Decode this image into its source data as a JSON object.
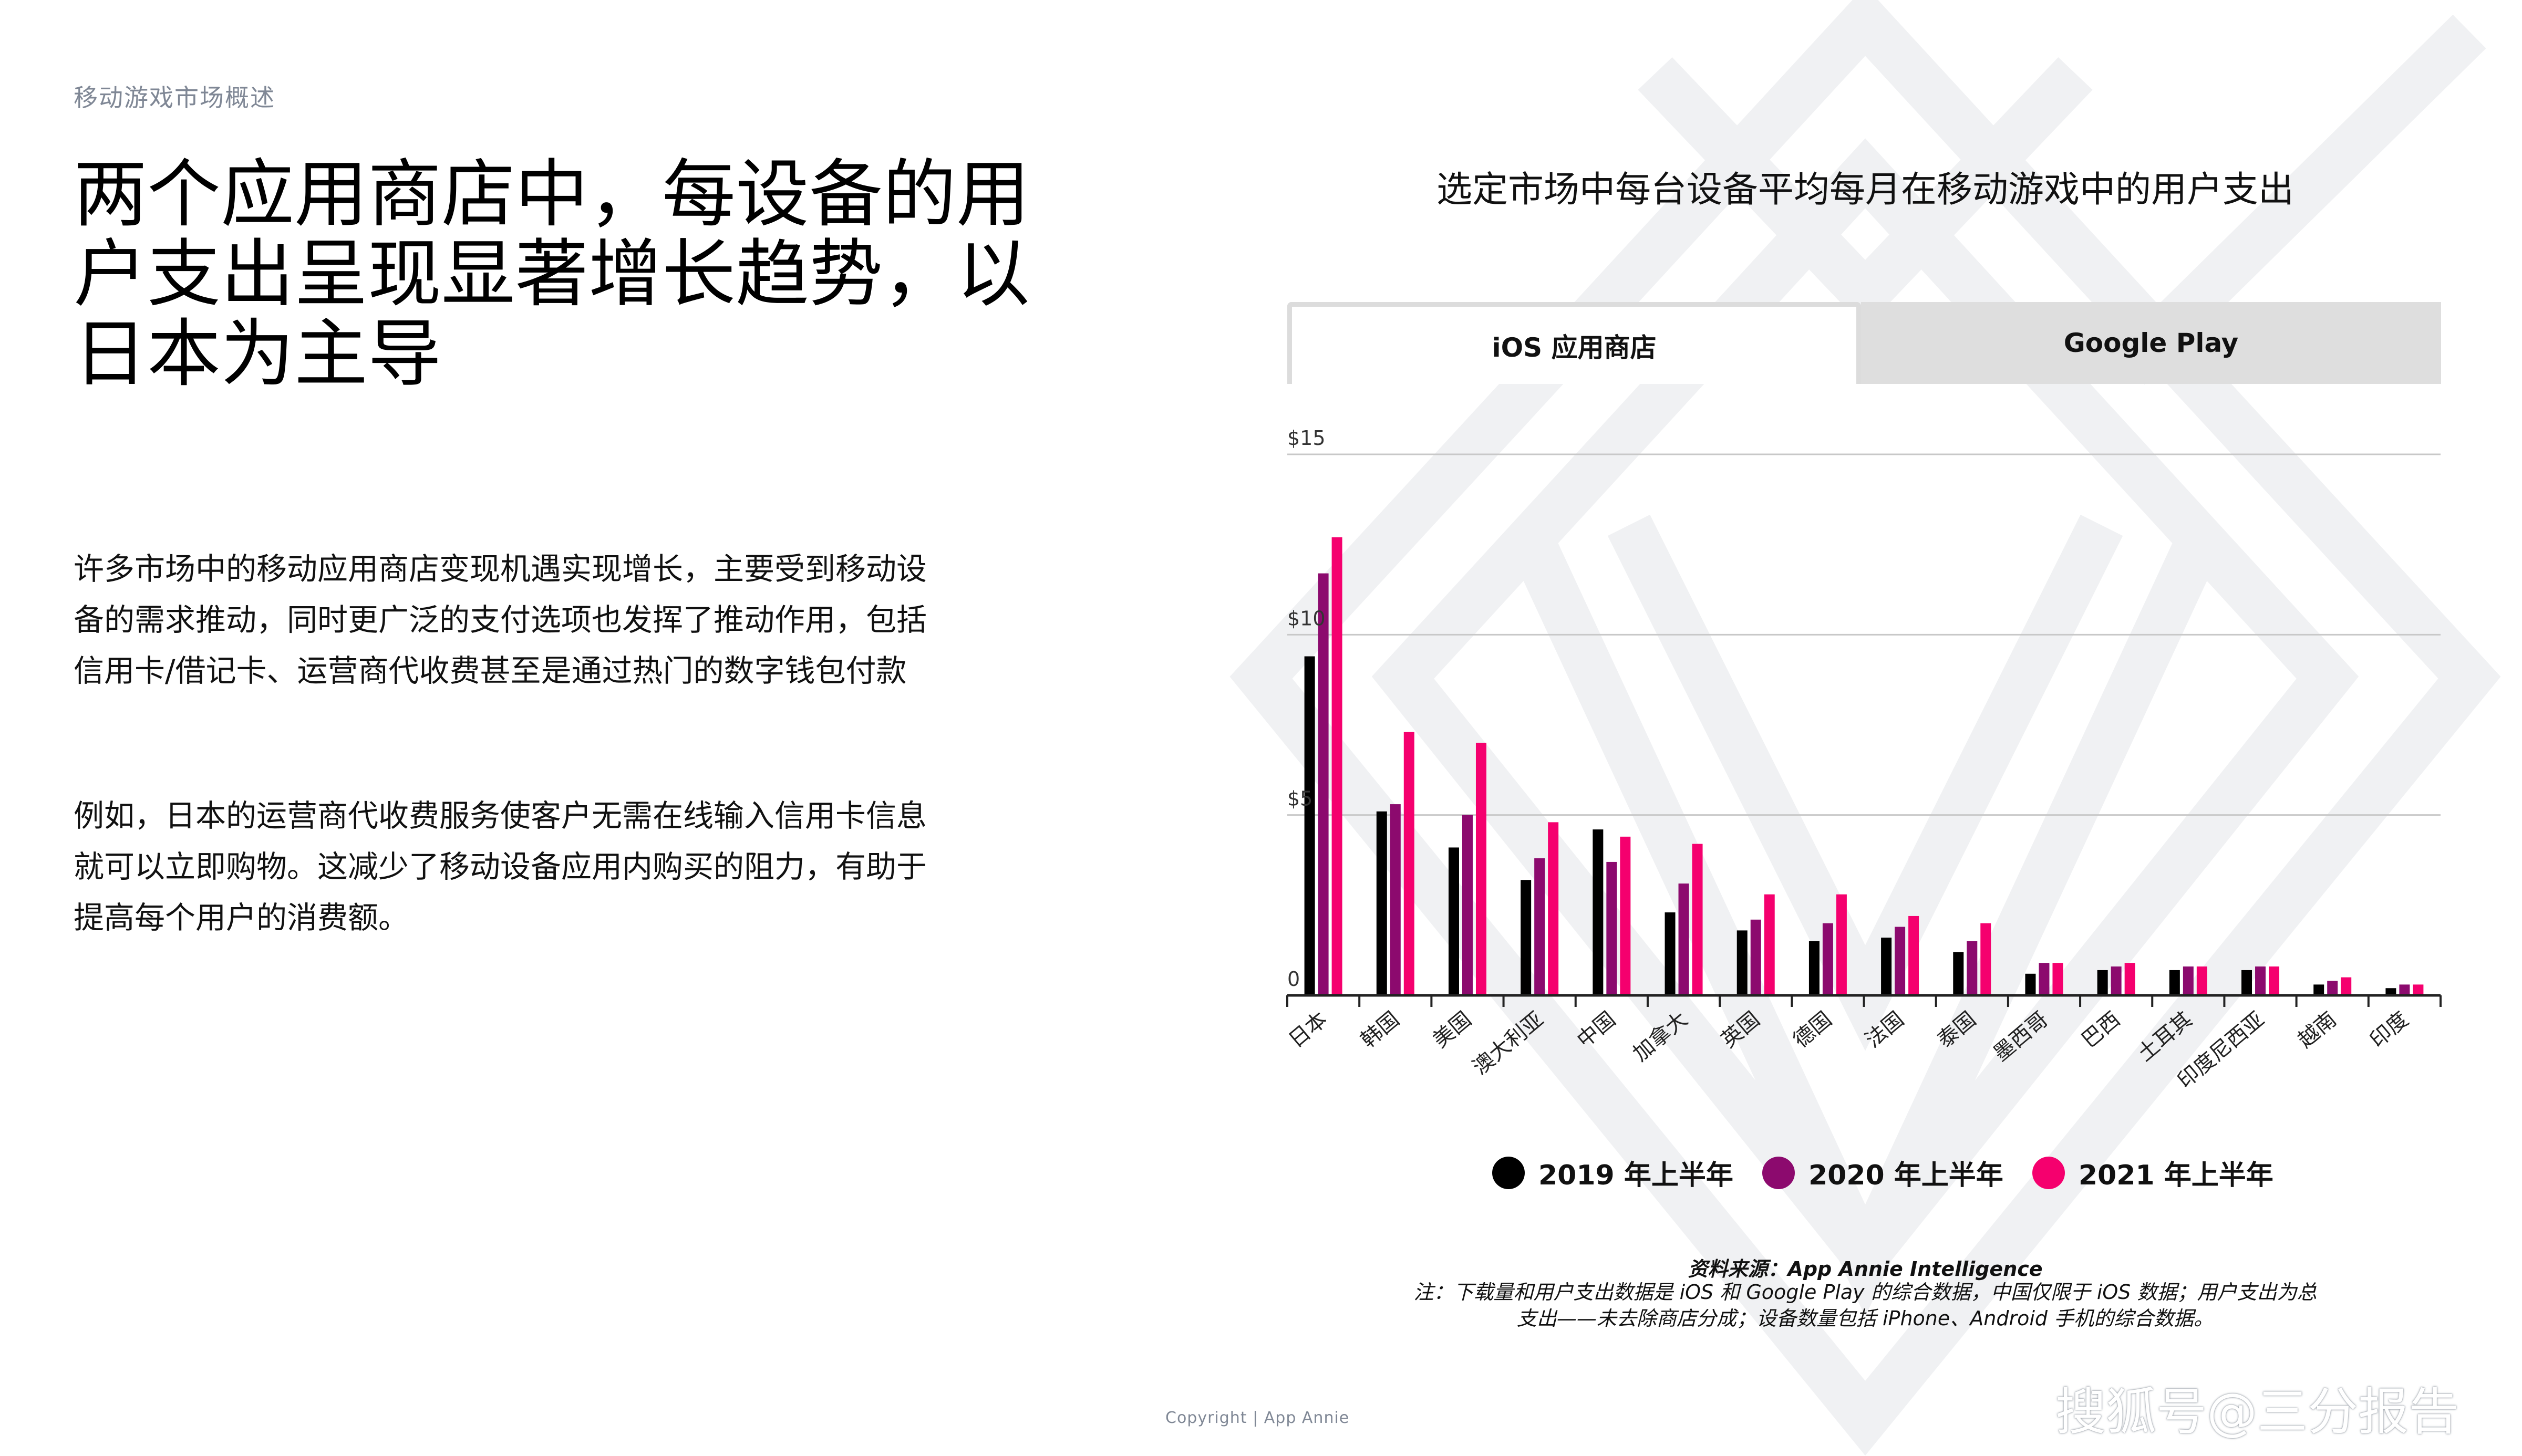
{
  "header": {
    "section_label": "移动游戏市场概述",
    "headline": "两个应用商店中，每设备的用户支出呈现显著增长趋势，以日本为主导"
  },
  "body": {
    "paragraph1": "许多市场中的移动应用商店变现机遇实现增长，主要受到移动设备的需求推动，同时更广泛的支付选项也发挥了推动作用，包括信用卡/借记卡、运营商代收费甚至是通过热门的数字钱包付款",
    "paragraph2": "例如，日本的运营商代收费服务使客户无需在线输入信用卡信息就可以立即购物。这减少了移动设备应用内购买的阻力，有助于提高每个用户的消费额。"
  },
  "tabs": [
    {
      "label": "iOS 应用商店",
      "active": true
    },
    {
      "label": "Google Play",
      "active": false
    }
  ],
  "chart_data": {
    "type": "bar",
    "title": "选定市场中每台设备平均每月在移动游戏中的用户支出",
    "categories": [
      "日本",
      "韩国",
      "美国",
      "澳大利亚",
      "中国",
      "加拿大",
      "英国",
      "德国",
      "法国",
      "泰国",
      "墨西哥",
      "巴西",
      "土耳其",
      "印度尼西亚",
      "越南",
      "印度"
    ],
    "series": [
      {
        "name": "2019 年上半年",
        "color": "#000000",
        "values": [
          9.4,
          5.1,
          4.1,
          3.2,
          4.6,
          2.3,
          1.8,
          1.5,
          1.6,
          1.2,
          0.6,
          0.7,
          0.7,
          0.7,
          0.3,
          0.2
        ]
      },
      {
        "name": "2020 年上半年",
        "color": "#8c0a6e",
        "values": [
          11.7,
          5.3,
          5.0,
          3.8,
          3.7,
          3.1,
          2.1,
          2.0,
          1.9,
          1.5,
          0.9,
          0.8,
          0.8,
          0.8,
          0.4,
          0.3
        ]
      },
      {
        "name": "2021 年上半年",
        "color": "#f5006e",
        "values": [
          12.7,
          7.3,
          7.0,
          4.8,
          4.4,
          4.2,
          2.8,
          2.8,
          2.2,
          2.0,
          0.9,
          0.9,
          0.8,
          0.8,
          0.5,
          0.3
        ]
      }
    ],
    "ylim": [
      0,
      15
    ],
    "yticks": [
      {
        "value": 0,
        "label": "0"
      },
      {
        "value": 5,
        "label": "$5"
      },
      {
        "value": 10,
        "label": "$10"
      },
      {
        "value": 15,
        "label": "$15"
      }
    ],
    "grid": true,
    "legend_position": "bottom"
  },
  "footer": {
    "source": "资料来源：App Annie Intelligence",
    "note_line1": "注：下载量和用户支出数据是 iOS 和 Google Play 的综合数据，中国仅限于 iOS 数据；用户支出为总",
    "note_line2": "支出——未去除商店分成；设备数量包括 iPhone、Android 手机的综合数据。",
    "copyright": "Copyright | App Annie",
    "watermark": "搜狐号@三分报告"
  }
}
